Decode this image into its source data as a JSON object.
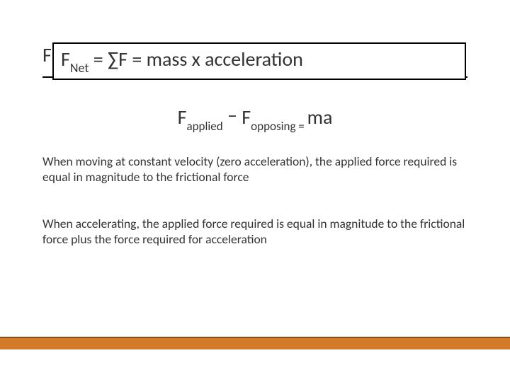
{
  "colors": {
    "text": "#333333",
    "border": "#000000",
    "background": "#ffffff",
    "footer_line": "#8a4a1a",
    "footer_fill": "#d37a2a"
  },
  "title": {
    "behind_letter": "F",
    "prefix": "F",
    "sub": "Net",
    "rest": " = ∑F = mass x acceleration"
  },
  "equation": {
    "f1": "F",
    "sub1": "applied",
    "minus": " – ",
    "f2": "F",
    "sub2": "opposing",
    "eq": " = ",
    "rhs": "ma"
  },
  "para1": "When moving at constant velocity (zero acceleration), the applied force required is equal in magnitude to the frictional force",
  "para2": "When accelerating, the applied force required is equal in magnitude to the frictional force plus the force required for acceleration"
}
